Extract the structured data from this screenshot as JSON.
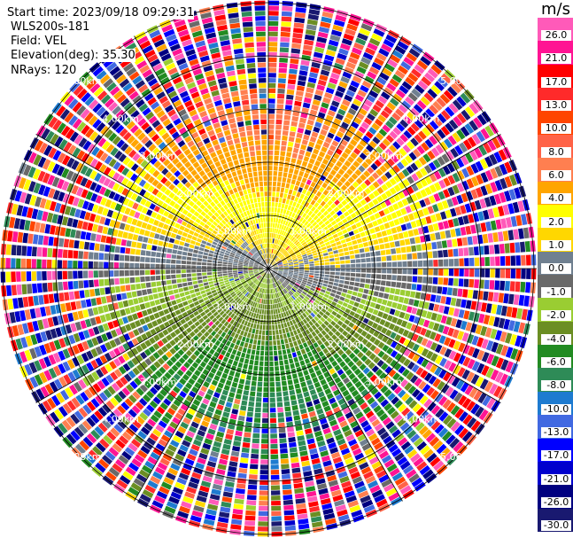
{
  "header": {
    "start_time": "Start time: 2023/09/18 09:29:31",
    "instrument": "WLS200s-181",
    "field": "Field: VEL",
    "elevation": "Elevation(deg): 35.30",
    "nrays": "NRays: 120"
  },
  "chart_data": {
    "type": "heatmap",
    "projection": "polar PPI",
    "field": "VEL",
    "n_rays": 120,
    "max_range_km": 5.05,
    "range_rings_km": [
      1,
      2,
      3,
      4,
      5
    ],
    "range_ring_labels": [
      "1.00km",
      "2.00km",
      "3.00km",
      "4.00km",
      "5.00km"
    ],
    "spoke_interval_deg": 30,
    "colorbar": {
      "unit": "m/s",
      "tick_labels": [
        "26.0",
        "21.0",
        "17.0",
        "13.0",
        "10.0",
        "8.0",
        "6.0",
        "4.0",
        "2.0",
        "1.0",
        "0.0",
        "-1.0",
        "-2.0",
        "-4.0",
        "-6.0",
        "-8.0",
        "-10.0",
        "-13.0",
        "-17.0",
        "-21.0",
        "-26.0",
        "-30.0"
      ],
      "bounds": [
        30,
        26,
        21,
        17,
        13,
        10,
        8,
        6,
        4,
        2,
        1,
        0,
        -1,
        -2,
        -4,
        -6,
        -8,
        -10,
        -13,
        -17,
        -21,
        -26,
        -30
      ],
      "colors": [
        "#ff5ab9",
        "#ff1493",
        "#ff0000",
        "#ff2a2a",
        "#ff4500",
        "#ff6347",
        "#ff7f50",
        "#ffa500",
        "#ffff00",
        "#ffd700",
        "#708090",
        "#696969",
        "#9acd32",
        "#6b8e23",
        "#228b22",
        "#2e8b57",
        "#1e7bd0",
        "#4169e1",
        "#0000ff",
        "#0000cd",
        "#000080",
        "#191970"
      ]
    },
    "pattern": {
      "near_range": "north sector positive 2 to 6 m/s, east/west near 0 m/s, south sector negative -1 to -8 m/s",
      "far_range": "noise beyond ~3.5 km"
    }
  }
}
